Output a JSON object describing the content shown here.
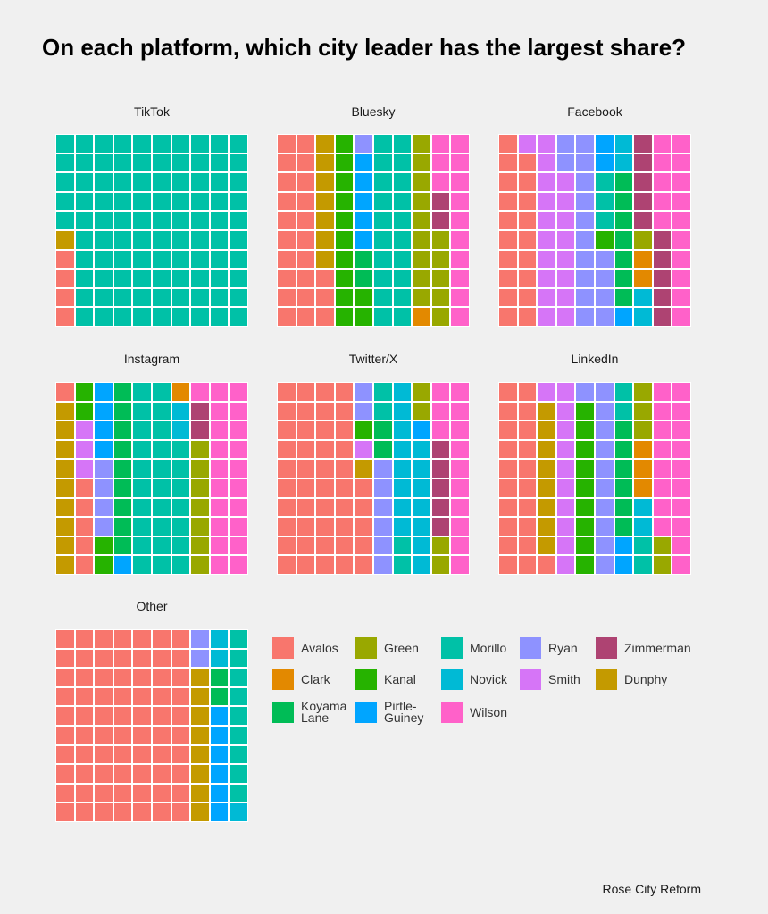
{
  "title": "On each platform, which city leader has the largest share?",
  "caption": "Rose City Reform",
  "colors": {
    "Avalos": "#F8766D",
    "Clark": "#E38900",
    "Dunphy": "#C49A00",
    "Green": "#99A800",
    "Kanal": "#26B300",
    "Koyama Lane": "#00BC56",
    "Morillo": "#00C1A7",
    "Novick": "#00BAD5",
    "Pirtle-Guiney": "#00A5FF",
    "Ryan": "#8E92FF",
    "Smith": "#D675F7",
    "Wilson": "#FF61C9",
    "Zimmerman": "#AE4372"
  },
  "chart_data": {
    "type": "waffle",
    "grid": {
      "rows": 10,
      "cols": 10,
      "fill_order": "column-major, bottom-up, left-to-right"
    },
    "title": "On each platform, which city leader has the largest share?",
    "legend": {
      "labels": [
        "Avalos",
        "Green",
        "Morillo",
        "Ryan",
        "Zimmerman",
        "Clark",
        "Kanal",
        "Novick",
        "Smith",
        "Dunphy",
        "Koyama\nLane",
        "Pirtle-\nGuiney",
        "Wilson"
      ],
      "keys": [
        "Avalos",
        "Green",
        "Morillo",
        "Ryan",
        "Zimmerman",
        "Clark",
        "Kanal",
        "Novick",
        "Smith",
        "Dunphy",
        "Koyama Lane",
        "Pirtle-Guiney",
        "Wilson"
      ],
      "placement": "right of Other panel"
    },
    "panels": [
      {
        "name": "TikTok",
        "values": [
          {
            "leader": "Avalos",
            "count": 4
          },
          {
            "leader": "Dunphy",
            "count": 1
          },
          {
            "leader": "Morillo",
            "count": 95
          }
        ]
      },
      {
        "name": "Bluesky",
        "values": [
          {
            "leader": "Avalos",
            "count": 23
          },
          {
            "leader": "Dunphy",
            "count": 7
          },
          {
            "leader": "Kanal",
            "count": 12
          },
          {
            "leader": "Koyama Lane",
            "count": 2
          },
          {
            "leader": "Pirtle-Guiney",
            "count": 5
          },
          {
            "leader": "Ryan",
            "count": 1
          },
          {
            "leader": "Morillo",
            "count": 20
          },
          {
            "leader": "Clark",
            "count": 1
          },
          {
            "leader": "Green",
            "count": 14
          },
          {
            "leader": "Zimmerman",
            "count": 2
          },
          {
            "leader": "Wilson",
            "count": 13
          }
        ]
      },
      {
        "name": "Facebook",
        "values": [
          {
            "leader": "Avalos",
            "count": 19
          },
          {
            "leader": "Smith",
            "count": 19
          },
          {
            "leader": "Ryan",
            "count": 16
          },
          {
            "leader": "Kanal",
            "count": 1
          },
          {
            "leader": "Morillo",
            "count": 3
          },
          {
            "leader": "Pirtle-Guiney",
            "count": 3
          },
          {
            "leader": "Koyama Lane",
            "count": 7
          },
          {
            "leader": "Novick",
            "count": 4
          },
          {
            "leader": "Clark",
            "count": 2
          },
          {
            "leader": "Green",
            "count": 1
          },
          {
            "leader": "Zimmerman",
            "count": 10
          },
          {
            "leader": "Wilson",
            "count": 15
          }
        ]
      },
      {
        "name": "Instagram",
        "values": [
          {
            "leader": "Dunphy",
            "count": 9
          },
          {
            "leader": "Avalos",
            "count": 6
          },
          {
            "leader": "Smith",
            "count": 3
          },
          {
            "leader": "Kanal",
            "count": 4
          },
          {
            "leader": "Ryan",
            "count": 4
          },
          {
            "leader": "Pirtle-Guiney",
            "count": 5
          },
          {
            "leader": "Koyama Lane",
            "count": 9
          },
          {
            "leader": "Morillo",
            "count": 27
          },
          {
            "leader": "Novick",
            "count": 2
          },
          {
            "leader": "Clark",
            "count": 1
          },
          {
            "leader": "Green",
            "count": 7
          },
          {
            "leader": "Zimmerman",
            "count": 2
          },
          {
            "leader": "Wilson",
            "count": 21
          }
        ]
      },
      {
        "name": "Twitter/X",
        "values": [
          {
            "leader": "Avalos",
            "count": 45
          },
          {
            "leader": "Dunphy",
            "count": 1
          },
          {
            "leader": "Smith",
            "count": 1
          },
          {
            "leader": "Kanal",
            "count": 1
          },
          {
            "leader": "Ryan",
            "count": 8
          },
          {
            "leader": "Koyama Lane",
            "count": 2
          },
          {
            "leader": "Morillo",
            "count": 4
          },
          {
            "leader": "Novick",
            "count": 15
          },
          {
            "leader": "Pirtle-Guiney",
            "count": 1
          },
          {
            "leader": "Green",
            "count": 4
          },
          {
            "leader": "Zimmerman",
            "count": 5
          },
          {
            "leader": "Wilson",
            "count": 13
          }
        ]
      },
      {
        "name": "LinkedIn",
        "values": [
          {
            "leader": "Avalos",
            "count": 21
          },
          {
            "leader": "Dunphy",
            "count": 8
          },
          {
            "leader": "Smith",
            "count": 11
          },
          {
            "leader": "Kanal",
            "count": 9
          },
          {
            "leader": "Ryan",
            "count": 11
          },
          {
            "leader": "Pirtle-Guiney",
            "count": 2
          },
          {
            "leader": "Koyama Lane",
            "count": 6
          },
          {
            "leader": "Morillo",
            "count": 4
          },
          {
            "leader": "Novick",
            "count": 2
          },
          {
            "leader": "Clark",
            "count": 3
          },
          {
            "leader": "Green",
            "count": 5
          },
          {
            "leader": "Wilson",
            "count": 18
          }
        ]
      },
      {
        "name": "Other",
        "values": [
          {
            "leader": "Avalos",
            "count": 70
          },
          {
            "leader": "Dunphy",
            "count": 8
          },
          {
            "leader": "Ryan",
            "count": 2
          },
          {
            "leader": "Pirtle-Guiney",
            "count": 6
          },
          {
            "leader": "Koyama Lane",
            "count": 2
          },
          {
            "leader": "Novick",
            "count": 3
          },
          {
            "leader": "Morillo",
            "count": 9
          }
        ]
      }
    ]
  }
}
